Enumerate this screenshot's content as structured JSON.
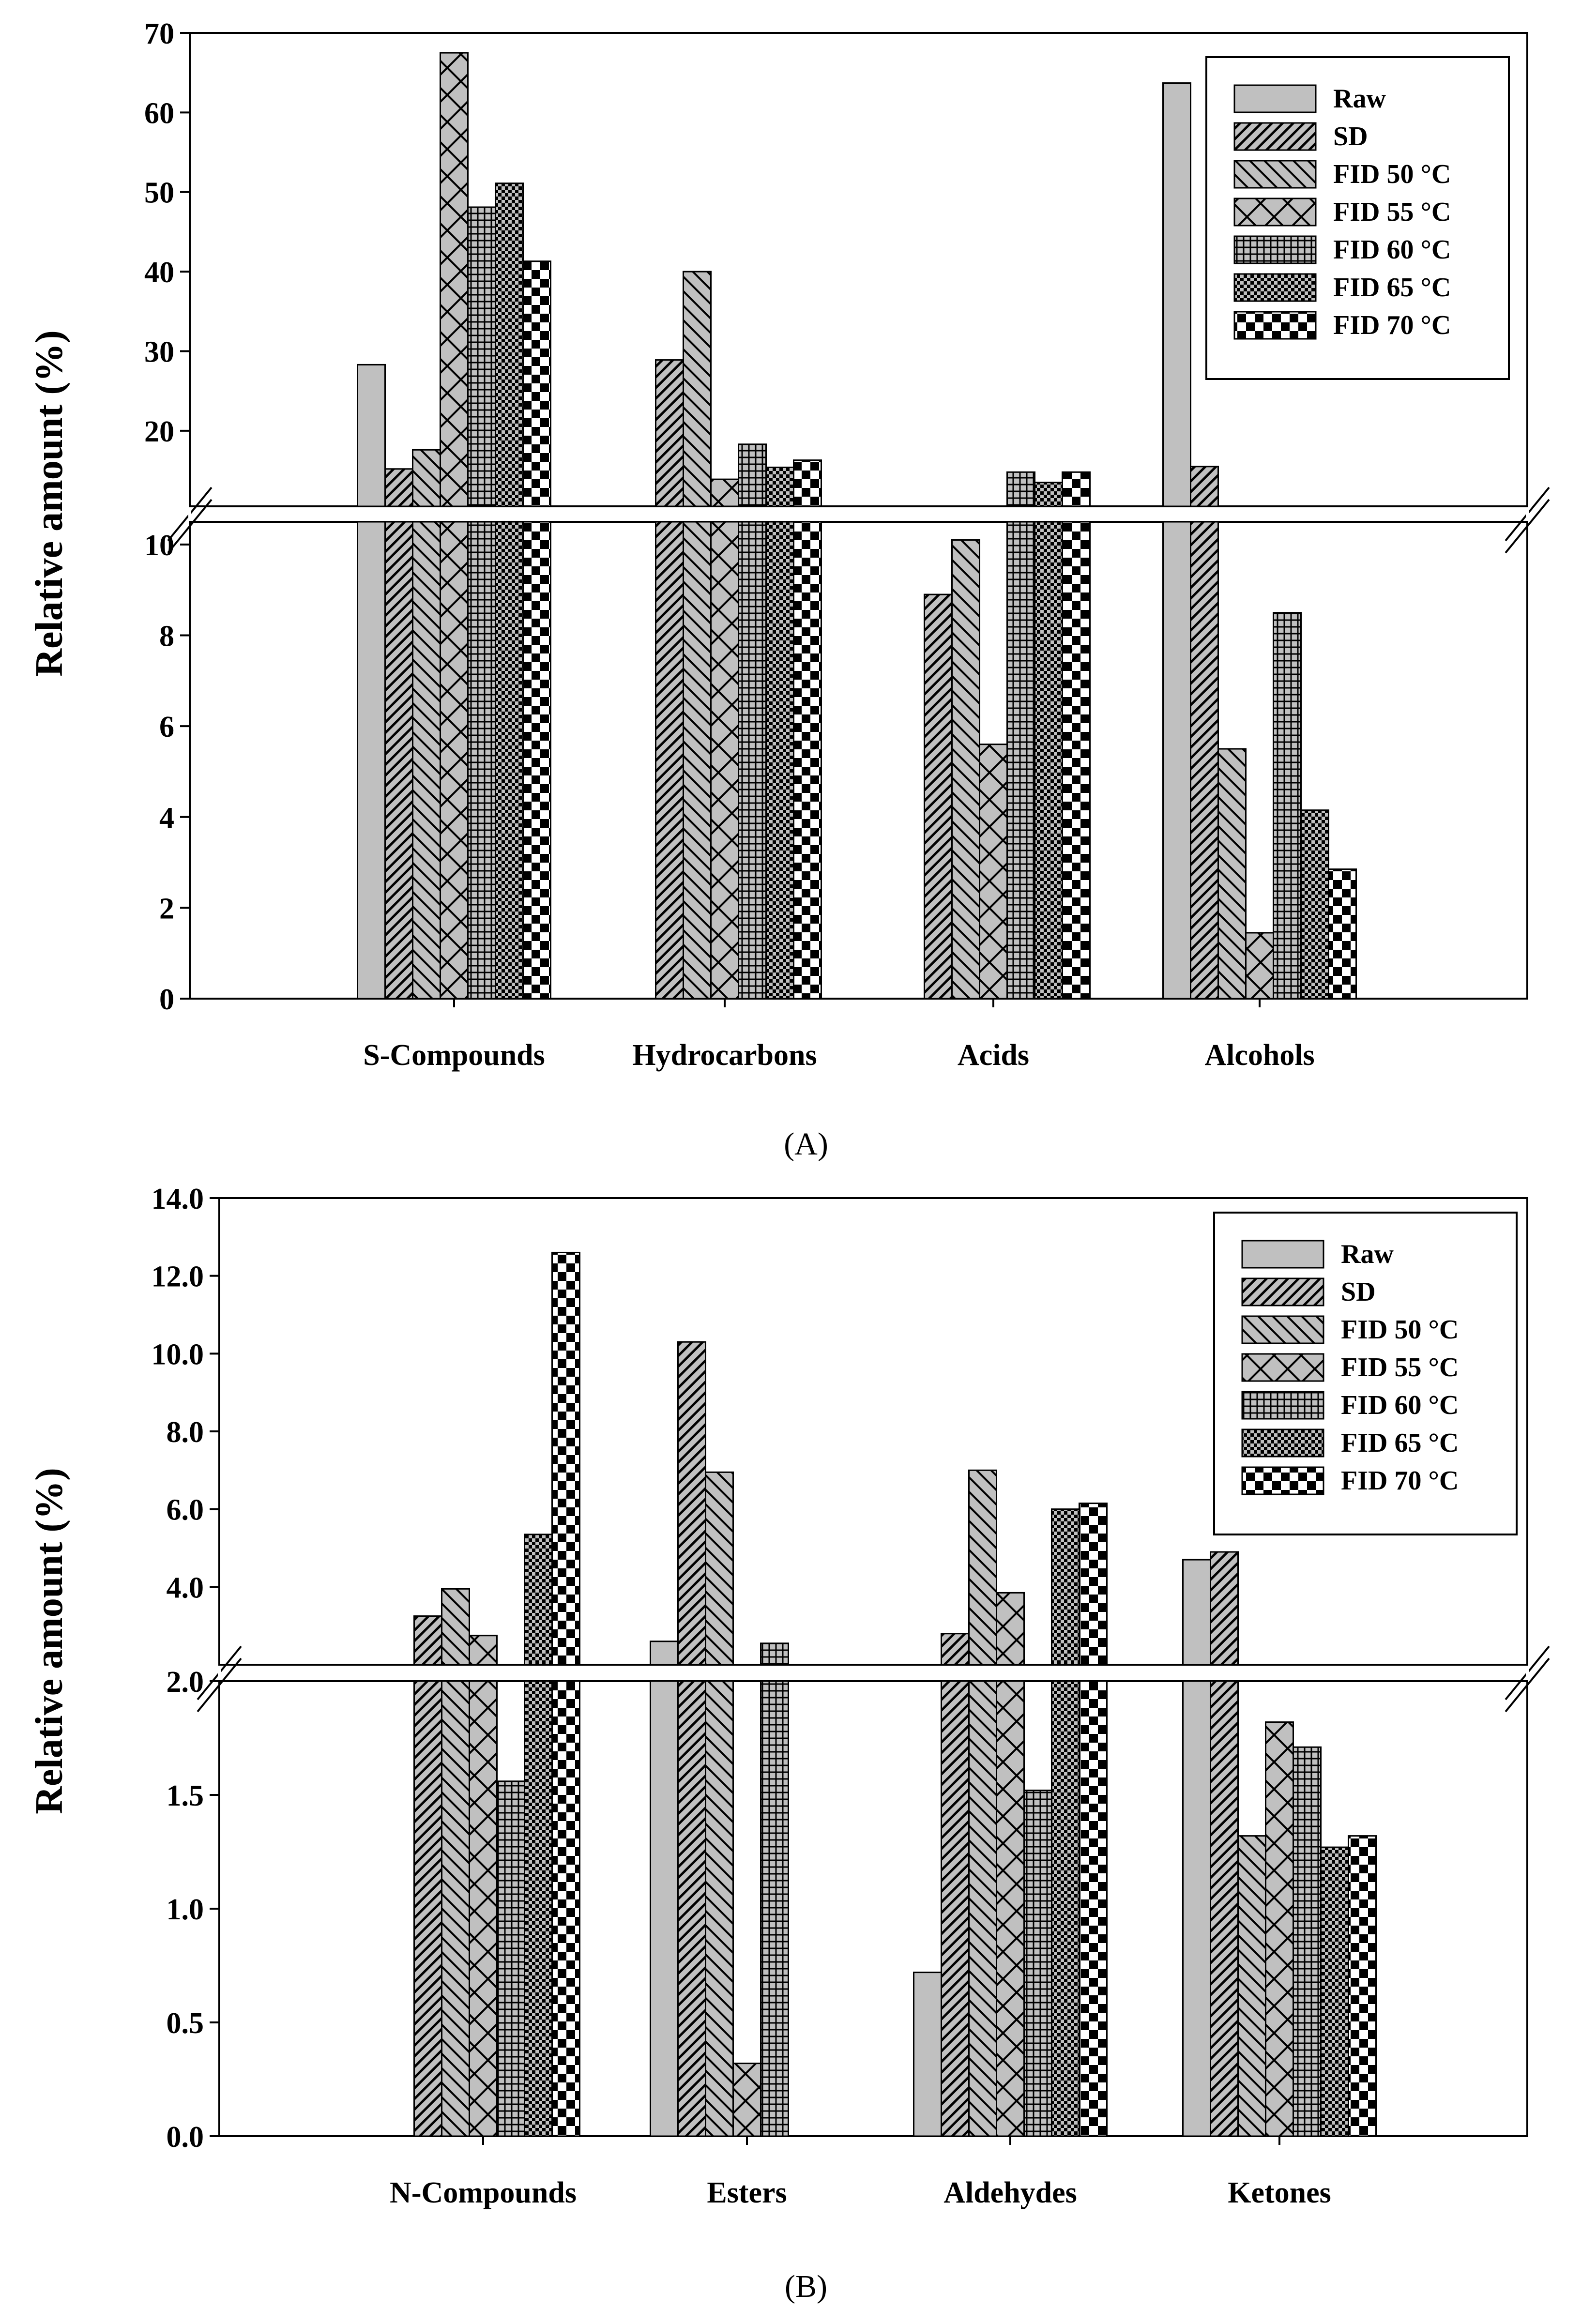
{
  "series_names": [
    "Raw",
    "SD",
    "FID 50 °C",
    "FID 55 °C",
    "FID 60 °C",
    "FID 65 °C",
    "FID 70 °C"
  ],
  "series_patterns": [
    "solid",
    "diag-right",
    "diag-left",
    "diag-cross",
    "grid",
    "dots",
    "checker"
  ],
  "colors": {
    "bar_fill": "#c0c0c0",
    "pattern_ink": "#000000",
    "checker_dark": "#000000",
    "axis": "#000000"
  },
  "chart_data": [
    {
      "type": "bar",
      "panel_label": "(A)",
      "ylabel": "Relative amount (%)",
      "categories": [
        "S-Compounds",
        "Hydrocarbons",
        "Acids",
        "Alcohols"
      ],
      "broken_axis": {
        "lower_range": [
          0,
          10.5
        ],
        "upper_range": [
          10.5,
          70
        ]
      },
      "lower_ticks": [
        0,
        2,
        4,
        6,
        8,
        10
      ],
      "upper_ticks": [
        20,
        30,
        40,
        50,
        60,
        70
      ],
      "lower_tick_labels": [
        "0",
        "2",
        "4",
        "6",
        "8",
        "10"
      ],
      "upper_tick_labels": [
        "20",
        "30",
        "40",
        "50",
        "60",
        "70"
      ],
      "series": [
        {
          "name": "Raw",
          "values": [
            28.3,
            0,
            0,
            63.7
          ]
        },
        {
          "name": "SD",
          "values": [
            15.2,
            28.9,
            8.9,
            15.5
          ]
        },
        {
          "name": "FID 50 °C",
          "values": [
            17.6,
            40.0,
            10.1,
            5.5
          ]
        },
        {
          "name": "FID 55 °C",
          "values": [
            67.5,
            13.9,
            5.6,
            1.45
          ]
        },
        {
          "name": "FID 60 °C",
          "values": [
            48.1,
            18.3,
            14.8,
            8.5
          ]
        },
        {
          "name": "FID 65 °C",
          "values": [
            51.1,
            15.4,
            13.5,
            4.15
          ]
        },
        {
          "name": "FID 70 °C",
          "values": [
            41.3,
            16.3,
            14.8,
            2.85
          ]
        }
      ]
    },
    {
      "type": "bar",
      "panel_label": "(B)",
      "ylabel": "Relative amount (%)",
      "categories": [
        "N-Compounds",
        "Esters",
        "Aldehydes",
        "Ketones"
      ],
      "broken_axis": {
        "lower_range": [
          0,
          2.0
        ],
        "upper_range": [
          2.0,
          14.0
        ]
      },
      "lower_ticks": [
        0,
        0.5,
        1.0,
        1.5,
        2.0
      ],
      "upper_ticks": [
        4,
        6,
        8,
        10,
        12,
        14
      ],
      "lower_tick_labels": [
        "0.0",
        "0.5",
        "1.0",
        "1.5",
        "2.0"
      ],
      "upper_tick_labels": [
        "4.0",
        "6.0",
        "8.0",
        "10.0",
        "12.0",
        "14.0"
      ],
      "series": [
        {
          "name": "Raw",
          "values": [
            0,
            2.6,
            0.72,
            4.7
          ]
        },
        {
          "name": "SD",
          "values": [
            3.25,
            10.3,
            2.8,
            4.9
          ]
        },
        {
          "name": "FID 50 °C",
          "values": [
            3.95,
            6.95,
            7.0,
            1.32
          ]
        },
        {
          "name": "FID 55 °C",
          "values": [
            2.75,
            0.32,
            3.85,
            1.82
          ]
        },
        {
          "name": "FID 60 °C",
          "values": [
            1.56,
            2.55,
            1.52,
            1.71
          ]
        },
        {
          "name": "FID 65 °C",
          "values": [
            5.35,
            0,
            6.0,
            1.27
          ]
        },
        {
          "name": "FID 70 °C",
          "values": [
            12.6,
            0,
            6.15,
            1.32
          ]
        }
      ]
    }
  ]
}
